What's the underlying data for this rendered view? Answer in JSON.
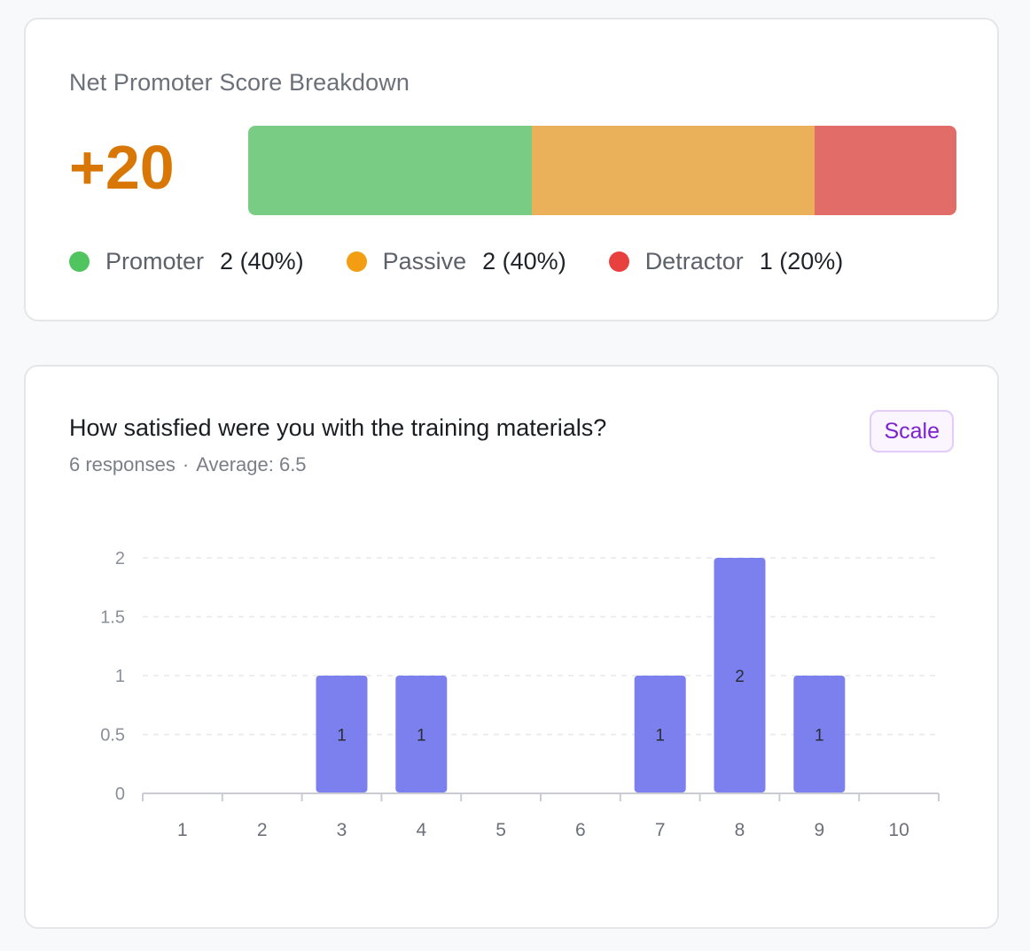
{
  "nps": {
    "title": "Net Promoter Score Breakdown",
    "score": "+20",
    "segments": [
      {
        "name": "promoter",
        "fraction": 0.4,
        "color": "#79cc83"
      },
      {
        "name": "passive",
        "fraction": 0.4,
        "color": "#ebb05a"
      },
      {
        "name": "detractor",
        "fraction": 0.2,
        "color": "#e26c67"
      }
    ],
    "legend": [
      {
        "label": "Promoter",
        "value": "2 (40%)",
        "color": "#4fc45f"
      },
      {
        "label": "Passive",
        "value": "2 (40%)",
        "color": "#f29d12"
      },
      {
        "label": "Detractor",
        "value": "1 (20%)",
        "color": "#e8403f"
      }
    ]
  },
  "question": {
    "title": "How satisfied were you with the training materials?",
    "responses": "6 responses",
    "separator": "·",
    "average": "Average: 6.5",
    "badge": "Scale"
  },
  "chart_data": {
    "type": "bar",
    "categories": [
      "1",
      "2",
      "3",
      "4",
      "5",
      "6",
      "7",
      "8",
      "9",
      "10"
    ],
    "values": [
      0,
      0,
      1,
      1,
      0,
      0,
      1,
      2,
      1,
      0
    ],
    "ylim": [
      0,
      2
    ],
    "yticks": [
      "0",
      "0.5",
      "1",
      "1.5",
      "2"
    ],
    "bar_color": "#7c7fee",
    "grid": true
  }
}
